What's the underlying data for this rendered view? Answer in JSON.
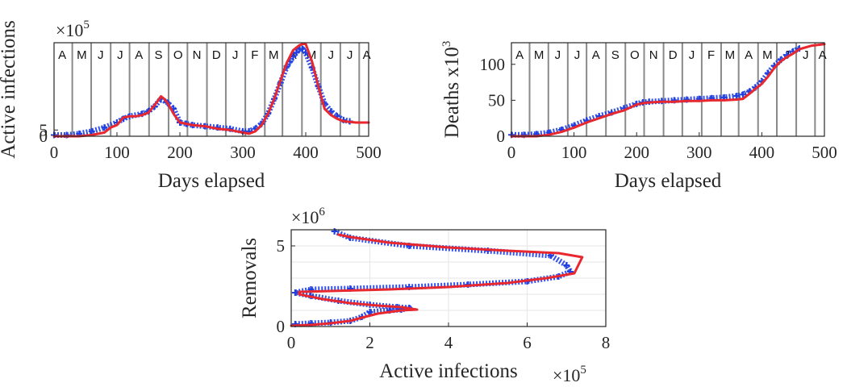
{
  "chart_data": [
    {
      "type": "line",
      "ylabel": "Active  infections",
      "xlabel": "Days elapsed",
      "y_multiplier": {
        "base": "×10",
        "exp": "5"
      },
      "xlim": [
        0,
        500
      ],
      "ylim": [
        0,
        75
      ],
      "xticks": [
        0,
        100,
        200,
        300,
        400,
        500
      ],
      "yticks": [
        0,
        5
      ],
      "ytick_values": [
        0,
        500000
      ],
      "y_unit_scale": 100000,
      "month_lines": [
        29,
        59,
        90,
        120,
        151,
        182,
        212,
        243,
        273,
        304,
        335,
        363,
        394,
        424,
        455,
        485
      ],
      "month_labels": [
        "A",
        "M",
        "J",
        "J",
        "A",
        "S",
        "O",
        "N",
        "D",
        "J",
        "F",
        "M",
        "A",
        "M",
        "J",
        "J",
        "A"
      ],
      "month_label_x": [
        13,
        44,
        74,
        105,
        135,
        166,
        197,
        227,
        258,
        288,
        319,
        349,
        379,
        409,
        440,
        470,
        497
      ],
      "series": [
        {
          "kind": "marker",
          "color": "#1f3fe0",
          "x": [
            0,
            20,
            40,
            60,
            80,
            100,
            110,
            120,
            140,
            150,
            160,
            170,
            180,
            190,
            200,
            210,
            220,
            240,
            260,
            280,
            300,
            310,
            320,
            330,
            340,
            350,
            360,
            370,
            375,
            380,
            385,
            390,
            395,
            400,
            410,
            420,
            430,
            440,
            450,
            460,
            470
          ],
          "y": [
            1,
            1,
            2,
            4,
            7,
            11,
            14,
            16,
            18,
            20,
            24,
            30,
            27,
            22,
            11,
            10,
            9,
            8,
            7,
            6,
            4,
            4,
            6,
            10,
            18,
            30,
            43,
            56,
            60,
            64,
            67,
            70,
            70,
            67,
            55,
            40,
            26,
            20,
            16,
            13,
            12
          ]
        },
        {
          "kind": "line",
          "color": "#e8282e",
          "x": [
            0,
            20,
            40,
            60,
            80,
            90,
            100,
            110,
            120,
            130,
            140,
            150,
            160,
            170,
            175,
            180,
            190,
            200,
            210,
            220,
            240,
            260,
            280,
            300,
            310,
            320,
            330,
            340,
            350,
            360,
            370,
            380,
            390,
            395,
            400,
            410,
            420,
            430,
            440,
            450,
            460,
            480,
            500
          ],
          "y": [
            0,
            0,
            0,
            1,
            3,
            7,
            9,
            15,
            16,
            16,
            17,
            19,
            25,
            32,
            30,
            27,
            18,
            11,
            10,
            9,
            8,
            6,
            5,
            3,
            2,
            4,
            9,
            18,
            30,
            45,
            59,
            69,
            73,
            74,
            74,
            60,
            40,
            22,
            17,
            14,
            12,
            11,
            11
          ]
        }
      ]
    },
    {
      "type": "line",
      "ylabel": "Deaths x10",
      "ylabel_exp": "3",
      "xlabel": "Days elapsed",
      "xlim": [
        0,
        500
      ],
      "ylim": [
        0,
        130
      ],
      "xticks": [
        0,
        100,
        200,
        300,
        400,
        500
      ],
      "yticks": [
        0,
        50,
        100
      ],
      "month_lines": [
        29,
        59,
        90,
        120,
        151,
        182,
        212,
        243,
        273,
        304,
        335,
        363,
        394,
        424,
        455,
        485
      ],
      "month_labels": [
        "A",
        "M",
        "J",
        "J",
        "A",
        "S",
        "O",
        "N",
        "D",
        "J",
        "F",
        "M",
        "A",
        "M",
        "J",
        "J",
        "A"
      ],
      "month_label_x": [
        13,
        44,
        74,
        105,
        135,
        166,
        197,
        227,
        258,
        288,
        319,
        349,
        379,
        409,
        440,
        470,
        497
      ],
      "series": [
        {
          "kind": "marker",
          "color": "#1f3fe0",
          "x": [
            0,
            20,
            40,
            60,
            80,
            100,
            120,
            140,
            160,
            180,
            200,
            210,
            220,
            240,
            260,
            280,
            300,
            320,
            340,
            360,
            370,
            380,
            390,
            400,
            410,
            420,
            430,
            440,
            450,
            460
          ],
          "y": [
            2,
            2,
            3,
            5,
            9,
            15,
            22,
            28,
            33,
            39,
            45,
            47,
            48,
            49,
            50,
            51,
            52,
            53,
            54,
            56,
            58,
            62,
            68,
            76,
            88,
            98,
            106,
            113,
            118,
            122
          ]
        },
        {
          "kind": "line",
          "color": "#e8282e",
          "x": [
            0,
            40,
            60,
            80,
            100,
            120,
            140,
            160,
            180,
            200,
            210,
            220,
            240,
            260,
            280,
            300,
            320,
            340,
            360,
            370,
            380,
            390,
            400,
            410,
            420,
            430,
            440,
            450,
            460,
            480,
            500
          ],
          "y": [
            0,
            0,
            2,
            6,
            12,
            19,
            25,
            31,
            36,
            44,
            46,
            47,
            48,
            48,
            49,
            49,
            50,
            50,
            51,
            52,
            59,
            66,
            73,
            83,
            95,
            104,
            110,
            115,
            121,
            126,
            128
          ]
        }
      ]
    },
    {
      "type": "line",
      "ylabel": "Removals",
      "xlabel": "Active infections",
      "x_multiplier": {
        "base": "×10",
        "exp": "5"
      },
      "y_multiplier": {
        "base": "×10",
        "exp": "6"
      },
      "xlim": [
        0,
        8
      ],
      "ylim": [
        0,
        6
      ],
      "xticks": [
        0,
        2,
        4,
        6,
        8
      ],
      "yticks": [
        0,
        5
      ],
      "series": [
        {
          "kind": "marker",
          "color": "#1f3fe0",
          "x": [
            0.1,
            0.5,
            1.0,
            1.5,
            1.8,
            2.0,
            2.5,
            2.8,
            3.0,
            2.7,
            2.0,
            1.2,
            0.5,
            0.1,
            0.5,
            1.5,
            3.0,
            4.5,
            6.0,
            6.8,
            7.1,
            7.0,
            6.6,
            5.0,
            3.0,
            1.5,
            1.1
          ],
          "y": [
            0.15,
            0.2,
            0.25,
            0.35,
            0.6,
            0.9,
            1.0,
            1.05,
            1.15,
            1.2,
            1.35,
            1.6,
            1.9,
            2.1,
            2.3,
            2.35,
            2.45,
            2.6,
            2.8,
            3.1,
            3.4,
            3.8,
            4.4,
            4.7,
            5.0,
            5.5,
            5.9
          ]
        },
        {
          "kind": "line",
          "color": "#e8282e",
          "x": [
            0.0,
            0.5,
            1.0,
            1.5,
            1.8,
            2.2,
            2.8,
            3.2,
            2.8,
            2.2,
            1.5,
            0.8,
            0.2,
            0.2,
            1.0,
            2.5,
            4.0,
            5.5,
            6.5,
            7.2,
            7.4,
            6.8,
            5.5,
            4.0,
            2.5,
            1.5,
            1.2
          ],
          "y": [
            0.05,
            0.1,
            0.2,
            0.35,
            0.55,
            0.8,
            1.0,
            1.05,
            1.2,
            1.3,
            1.45,
            1.7,
            2.0,
            2.15,
            2.2,
            2.3,
            2.45,
            2.7,
            3.0,
            3.3,
            4.3,
            4.55,
            4.7,
            4.9,
            5.2,
            5.55,
            5.7
          ]
        }
      ]
    }
  ]
}
